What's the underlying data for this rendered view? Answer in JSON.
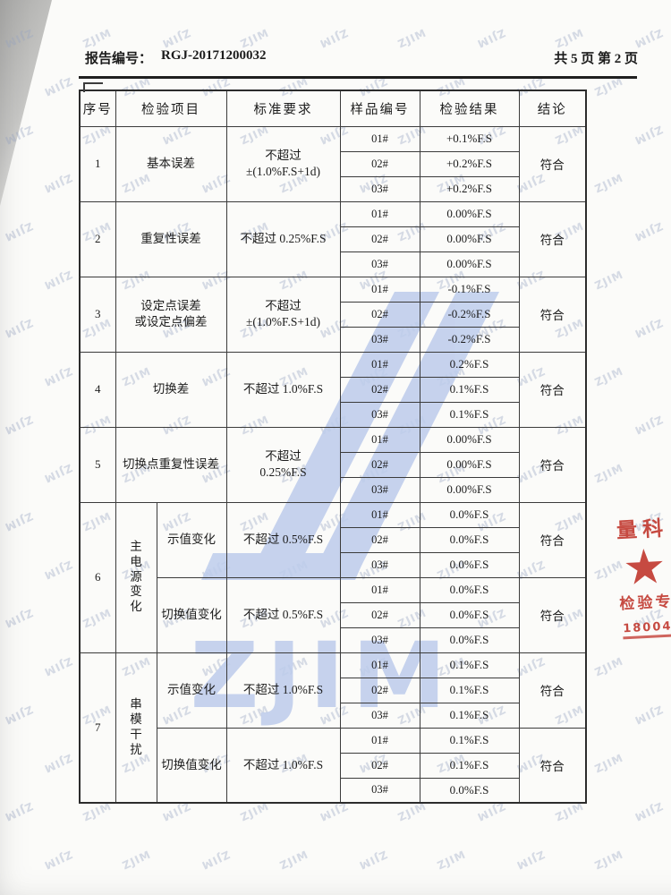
{
  "header": {
    "report_label": "报告编号：",
    "report_number": "RGJ-20171200032",
    "pagination": "共 5 页  第 2 页"
  },
  "watermark": {
    "tile_text": "ZJIM",
    "logo_text": "ZJIM",
    "logo_color": "#bdccec"
  },
  "stamp": {
    "color": "#c23b32",
    "line1": "量科",
    "star": "★",
    "line2": "检验专",
    "number": "18004"
  },
  "table": {
    "headers": [
      "序号",
      "检验项目",
      "标准要求",
      "样品编号",
      "检验结果",
      "结论"
    ],
    "rows": [
      {
        "no": "1",
        "group": null,
        "sections": [
          {
            "item": [
              "基本误差"
            ],
            "std": [
              "不超过",
              "±(1.0%F.S+1d)"
            ],
            "samples": [
              [
                "01#",
                "+0.1%F.S"
              ],
              [
                "02#",
                "+0.2%F.S"
              ],
              [
                "03#",
                "+0.2%F.S"
              ]
            ],
            "conclusion": "符合"
          }
        ]
      },
      {
        "no": "2",
        "group": null,
        "sections": [
          {
            "item": [
              "重复性误差"
            ],
            "std": [
              "不超过 0.25%F.S"
            ],
            "samples": [
              [
                "01#",
                "0.00%F.S"
              ],
              [
                "02#",
                "0.00%F.S"
              ],
              [
                "03#",
                "0.00%F.S"
              ]
            ],
            "conclusion": "符合"
          }
        ]
      },
      {
        "no": "3",
        "group": null,
        "sections": [
          {
            "item": [
              "设定点误差",
              "或设定点偏差"
            ],
            "std": [
              "不超过",
              "±(1.0%F.S+1d)"
            ],
            "samples": [
              [
                "01#",
                "-0.1%F.S"
              ],
              [
                "02#",
                "-0.2%F.S"
              ],
              [
                "03#",
                "-0.2%F.S"
              ]
            ],
            "conclusion": "符合"
          }
        ]
      },
      {
        "no": "4",
        "group": null,
        "sections": [
          {
            "item": [
              "切换差"
            ],
            "std": [
              "不超过 1.0%F.S"
            ],
            "samples": [
              [
                "01#",
                "0.2%F.S"
              ],
              [
                "02#",
                "0.1%F.S"
              ],
              [
                "03#",
                "0.1%F.S"
              ]
            ],
            "conclusion": "符合"
          }
        ]
      },
      {
        "no": "5",
        "group": null,
        "sections": [
          {
            "item": [
              "切换点重复性误差"
            ],
            "std": [
              "不超过",
              "0.25%F.S"
            ],
            "samples": [
              [
                "01#",
                "0.00%F.S"
              ],
              [
                "02#",
                "0.00%F.S"
              ],
              [
                "03#",
                "0.00%F.S"
              ]
            ],
            "conclusion": "符合"
          }
        ]
      },
      {
        "no": "6",
        "group": "主电源变化",
        "sections": [
          {
            "item": [
              "示值变化"
            ],
            "std": [
              "不超过 0.5%F.S"
            ],
            "samples": [
              [
                "01#",
                "0.0%F.S"
              ],
              [
                "02#",
                "0.0%F.S"
              ],
              [
                "03#",
                "0.0%F.S"
              ]
            ],
            "conclusion": "符合"
          },
          {
            "item": [
              "切换值变化"
            ],
            "std": [
              "不超过 0.5%F.S"
            ],
            "samples": [
              [
                "01#",
                "0.0%F.S"
              ],
              [
                "02#",
                "0.0%F.S"
              ],
              [
                "03#",
                "0.0%F.S"
              ]
            ],
            "conclusion": "符合"
          }
        ]
      },
      {
        "no": "7",
        "group": "串模干扰",
        "sections": [
          {
            "item": [
              "示值变化"
            ],
            "std": [
              "不超过 1.0%F.S"
            ],
            "samples": [
              [
                "01#",
                "0.1%F.S"
              ],
              [
                "02#",
                "0.1%F.S"
              ],
              [
                "03#",
                "0.1%F.S"
              ]
            ],
            "conclusion": "符合"
          },
          {
            "item": [
              "切换值变化"
            ],
            "std": [
              "不超过 1.0%F.S"
            ],
            "samples": [
              [
                "01#",
                "0.1%F.S"
              ],
              [
                "02#",
                "0.1%F.S"
              ],
              [
                "03#",
                "0.0%F.S"
              ]
            ],
            "conclusion": "符合"
          }
        ]
      }
    ]
  }
}
